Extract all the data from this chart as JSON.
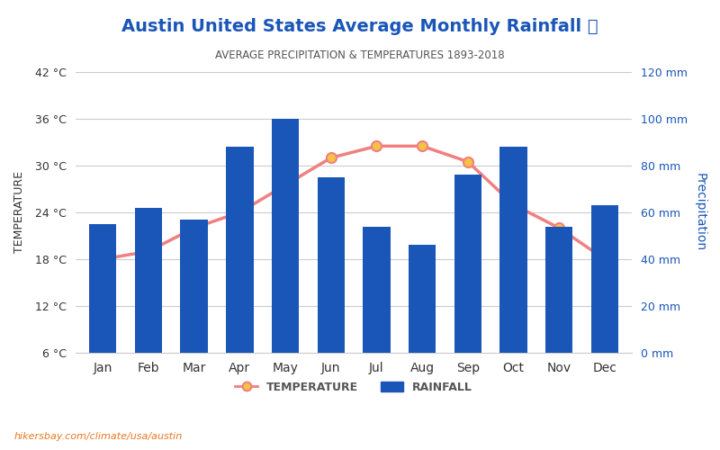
{
  "title": "Austin United States Average Monthly Rainfall 🌧",
  "subtitle": "AVERAGE PRECIPITATION & TEMPERATURES 1893-2018",
  "months": [
    "Jan",
    "Feb",
    "Mar",
    "Apr",
    "May",
    "Jun",
    "Jul",
    "Aug",
    "Sep",
    "Oct",
    "Nov",
    "Dec"
  ],
  "temperature": [
    18.0,
    19.0,
    22.0,
    24.0,
    27.5,
    31.0,
    32.5,
    32.5,
    30.5,
    25.0,
    22.0,
    18.0
  ],
  "rainfall": [
    55,
    62,
    57,
    88,
    100,
    75,
    54,
    46,
    76,
    88,
    54,
    63
  ],
  "bar_color": "#1a56b8",
  "line_color": "#f08080",
  "marker_face": "#f5c242",
  "marker_edge": "#f08080",
  "temp_axis_color": "#333333",
  "rain_axis_color": "#1a56b8",
  "title_color": "#1a56b8",
  "subtitle_color": "#555555",
  "temp_ylim": [
    6,
    42
  ],
  "temp_yticks": [
    6,
    12,
    18,
    24,
    30,
    36,
    42
  ],
  "rain_ylim": [
    0,
    120
  ],
  "rain_yticks": [
    0,
    20,
    40,
    60,
    80,
    100,
    120
  ],
  "watermark": "hikersbay.com/climate/usa/austin",
  "legend_temp_label": "TEMPERATURE",
  "legend_rain_label": "RAINFALL",
  "background_color": "#ffffff",
  "grid_color": "#cccccc"
}
